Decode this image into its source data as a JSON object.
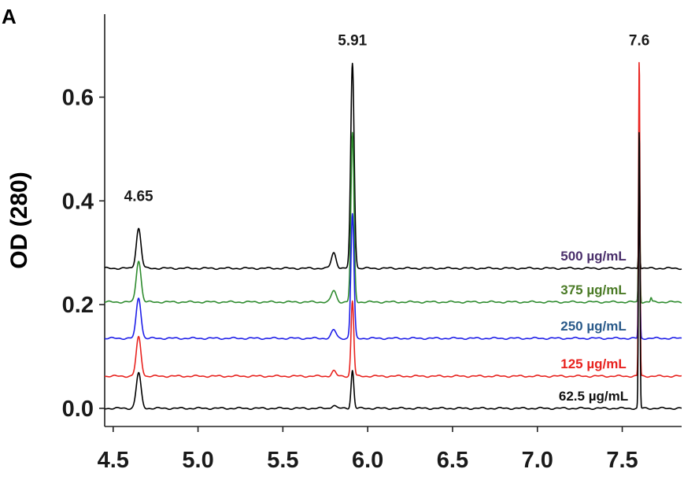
{
  "chart_data": {
    "type": "line",
    "panel_label": "A",
    "ylabel": "OD (280)",
    "xlabel": "",
    "xlim": [
      4.45,
      7.85
    ],
    "ylim": [
      -0.035,
      0.76
    ],
    "x_ticks": [
      4.5,
      5.0,
      5.5,
      6.0,
      6.5,
      7.0,
      7.5
    ],
    "x_tick_labels": [
      "4.5",
      "5.0",
      "5.5",
      "6.0",
      "6.5",
      "7.0",
      "7.5"
    ],
    "y_ticks": [
      0.0,
      0.2,
      0.4,
      0.6
    ],
    "y_tick_labels": [
      "0.0",
      "0.2",
      "0.4",
      "0.6"
    ],
    "grid": false,
    "peak_annotations": [
      {
        "text": "4.65",
        "x": 4.65,
        "y": 0.4
      },
      {
        "text": "5.91",
        "x": 5.91,
        "y": 0.7
      },
      {
        "text": "7.6",
        "x": 7.6,
        "y": 0.7
      }
    ],
    "series": [
      {
        "name": "62.5 µg/mL",
        "color": "#000000",
        "baseline": 0.0,
        "peaks": [
          {
            "x": 4.65,
            "height": 0.068,
            "width": 0.014
          },
          {
            "x": 5.8,
            "height": 0.006,
            "width": 0.012
          },
          {
            "x": 5.91,
            "height": 0.073,
            "width": 0.008
          },
          {
            "x": 7.6,
            "height": 0.54,
            "width": 0.004
          }
        ]
      },
      {
        "name": "125 µg/mL",
        "color": "#e8231f",
        "baseline": 0.062,
        "peaks": [
          {
            "x": 4.65,
            "height": 0.075,
            "width": 0.014
          },
          {
            "x": 5.8,
            "height": 0.01,
            "width": 0.012
          },
          {
            "x": 5.91,
            "height": 0.145,
            "width": 0.008
          },
          {
            "x": 7.6,
            "height": 0.615,
            "width": 0.004
          }
        ]
      },
      {
        "name": "250 µg/mL",
        "color": "#1f1fe8",
        "baseline": 0.135,
        "peaks": [
          {
            "x": 4.65,
            "height": 0.078,
            "width": 0.014
          },
          {
            "x": 5.8,
            "height": 0.016,
            "width": 0.014
          },
          {
            "x": 5.91,
            "height": 0.24,
            "width": 0.009
          },
          {
            "x": 7.6,
            "height": 0.37,
            "width": 0.004
          }
        ]
      },
      {
        "name": "375 µg/mL",
        "color": "#2e8b2e",
        "baseline": 0.205,
        "peaks": [
          {
            "x": 4.65,
            "height": 0.08,
            "width": 0.014
          },
          {
            "x": 5.8,
            "height": 0.022,
            "width": 0.014
          },
          {
            "x": 5.91,
            "height": 0.325,
            "width": 0.009
          },
          {
            "x": 7.6,
            "height": 0.3,
            "width": 0.004
          },
          {
            "x": 7.67,
            "height": 0.008,
            "width": 0.004
          }
        ]
      },
      {
        "name": "500 µg/mL",
        "color": "#000000",
        "baseline": 0.27,
        "peaks": [
          {
            "x": 4.65,
            "height": 0.077,
            "width": 0.014
          },
          {
            "x": 5.8,
            "height": 0.03,
            "width": 0.014
          },
          {
            "x": 5.91,
            "height": 0.395,
            "width": 0.01
          },
          {
            "x": 7.6,
            "height": 0.075,
            "width": 0.004
          }
        ]
      }
    ],
    "legend": [
      {
        "label": "500 µg/mL",
        "color": "#4a2f6b"
      },
      {
        "label": "375 µg/mL",
        "color": "#4a7a25"
      },
      {
        "label": "250 µg/mL",
        "color": "#2a5a8a"
      },
      {
        "label": "125 µg/mL",
        "color": "#e8231f"
      },
      {
        "label": "62.5 µg/mL",
        "color": "#111111"
      }
    ],
    "legend_placement": "right, stacked beside traces"
  }
}
